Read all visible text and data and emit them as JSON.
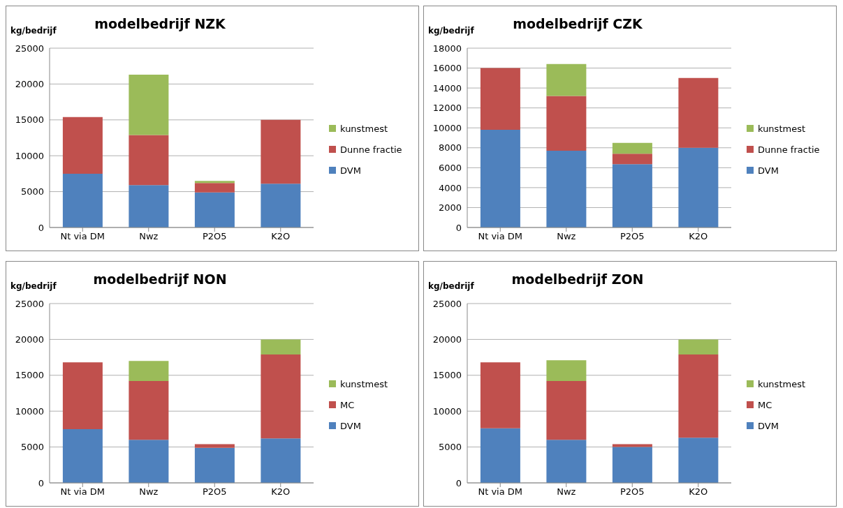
{
  "chart_data": [
    {
      "type": "bar",
      "title": "modelbedrijf NZK",
      "ylabel": "kg/bedrijf",
      "categories": [
        "Nt via DM",
        "Nwz",
        "P2O5",
        "K2O"
      ],
      "stacked": true,
      "ylim": [
        0,
        25000
      ],
      "yticks": [
        0,
        5000,
        10000,
        15000,
        20000,
        25000
      ],
      "grid": "y",
      "legend": "right",
      "series": [
        {
          "name": "DVM",
          "color": "#4f81bd",
          "values": [
            7500,
            5900,
            4900,
            6100
          ]
        },
        {
          "name": "Dunne fractie",
          "color": "#c0504d",
          "values": [
            7900,
            7000,
            1300,
            8900
          ]
        },
        {
          "name": "kunstmest",
          "color": "#9bbb59",
          "values": [
            0,
            8400,
            300,
            0
          ]
        }
      ]
    },
    {
      "type": "bar",
      "title": "modelbedrijf CZK",
      "ylabel": "kg/bedrijf",
      "categories": [
        "Nt via DM",
        "Nwz",
        "P2O5",
        "K2O"
      ],
      "stacked": true,
      "ylim": [
        0,
        18000
      ],
      "yticks": [
        0,
        2000,
        4000,
        6000,
        8000,
        10000,
        12000,
        14000,
        16000,
        18000
      ],
      "grid": "y",
      "legend": "right",
      "series": [
        {
          "name": "DVM",
          "color": "#4f81bd",
          "values": [
            9800,
            7700,
            6350,
            8000
          ]
        },
        {
          "name": "Dunne fractie",
          "color": "#c0504d",
          "values": [
            6200,
            5500,
            1050,
            7000
          ]
        },
        {
          "name": "kunstmest",
          "color": "#9bbb59",
          "values": [
            0,
            3200,
            1100,
            0
          ]
        }
      ]
    },
    {
      "type": "bar",
      "title": "modelbedrijf NON",
      "ylabel": "kg/bedrijf",
      "categories": [
        "Nt via DM",
        "Nwz",
        "P2O5",
        "K2O"
      ],
      "stacked": true,
      "ylim": [
        0,
        25000
      ],
      "yticks": [
        0,
        5000,
        10000,
        15000,
        20000,
        25000
      ],
      "grid": "y",
      "legend": "right",
      "series": [
        {
          "name": "DVM",
          "color": "#4f81bd",
          "values": [
            7500,
            6000,
            4900,
            6200
          ]
        },
        {
          "name": "MC",
          "color": "#c0504d",
          "values": [
            9300,
            8200,
            500,
            11700
          ]
        },
        {
          "name": "kunstmest",
          "color": "#9bbb59",
          "values": [
            0,
            2800,
            0,
            2100
          ]
        }
      ]
    },
    {
      "type": "bar",
      "title": "modelbedrijf ZON",
      "ylabel": "kg/bedrijf",
      "categories": [
        "Nt via DM",
        "Nwz",
        "P2O5",
        "K2O"
      ],
      "stacked": true,
      "ylim": [
        0,
        25000
      ],
      "yticks": [
        0,
        5000,
        10000,
        15000,
        20000,
        25000
      ],
      "grid": "y",
      "legend": "right",
      "series": [
        {
          "name": "DVM",
          "color": "#4f81bd",
          "values": [
            7600,
            6000,
            5000,
            6300
          ]
        },
        {
          "name": "MC",
          "color": "#c0504d",
          "values": [
            9200,
            8200,
            400,
            11600
          ]
        },
        {
          "name": "kunstmest",
          "color": "#9bbb59",
          "values": [
            0,
            2900,
            0,
            2100
          ]
        }
      ]
    }
  ]
}
